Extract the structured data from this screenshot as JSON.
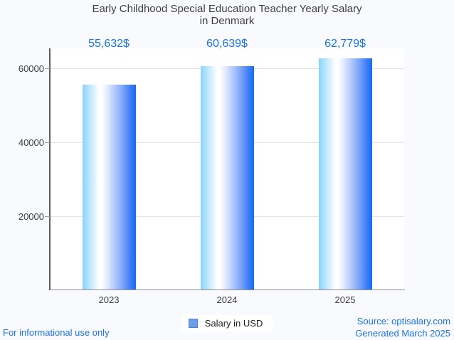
{
  "page": {
    "background": "#f9fafd",
    "title_line1": "Early Childhood Special Education Teacher Yearly Salary",
    "title_line2": "in Denmark",
    "footer_left": "For informational use only",
    "footer_right_line1": "Source: optisalary.com",
    "footer_right_line2": "Generated March 2025",
    "accent_color": "#1a73e8"
  },
  "legend": {
    "label": "Salary in USD",
    "swatch_color": "#6d9eea",
    "swatch_border": "#4f84cc"
  },
  "chart_data": {
    "type": "bar",
    "title": "Early Childhood Special Education Teacher Yearly Salary in Denmark",
    "categories": [
      "2023",
      "2024",
      "2025"
    ],
    "values": [
      55632,
      60639,
      62779
    ],
    "value_labels": [
      "55,632$",
      "60,639$",
      "62,779$"
    ],
    "series": [
      {
        "name": "Salary in USD",
        "values": [
          55632,
          60639,
          62779
        ]
      }
    ],
    "xlabel": "",
    "ylabel": "",
    "yticks": [
      20000,
      40000,
      60000
    ],
    "ytick_labels": [
      "20000",
      "40000",
      "60000"
    ],
    "ylim": [
      0,
      65400
    ],
    "grid": true,
    "legend_position": "bottom",
    "title_color": "#3f3f3f",
    "value_label_color": "#1a73e8",
    "gridline_color": "#e2e4e8",
    "bar_gradient_stops": [
      [
        "#8ad4fb",
        0
      ],
      [
        "#ffffff",
        31
      ],
      [
        "#ffffff",
        36
      ],
      [
        "#dde7fd",
        48
      ],
      [
        "#adc5fb",
        62
      ],
      [
        "#7aa3f9",
        76
      ],
      [
        "#3c7df7",
        90
      ],
      [
        "#156bfa",
        100
      ]
    ]
  }
}
